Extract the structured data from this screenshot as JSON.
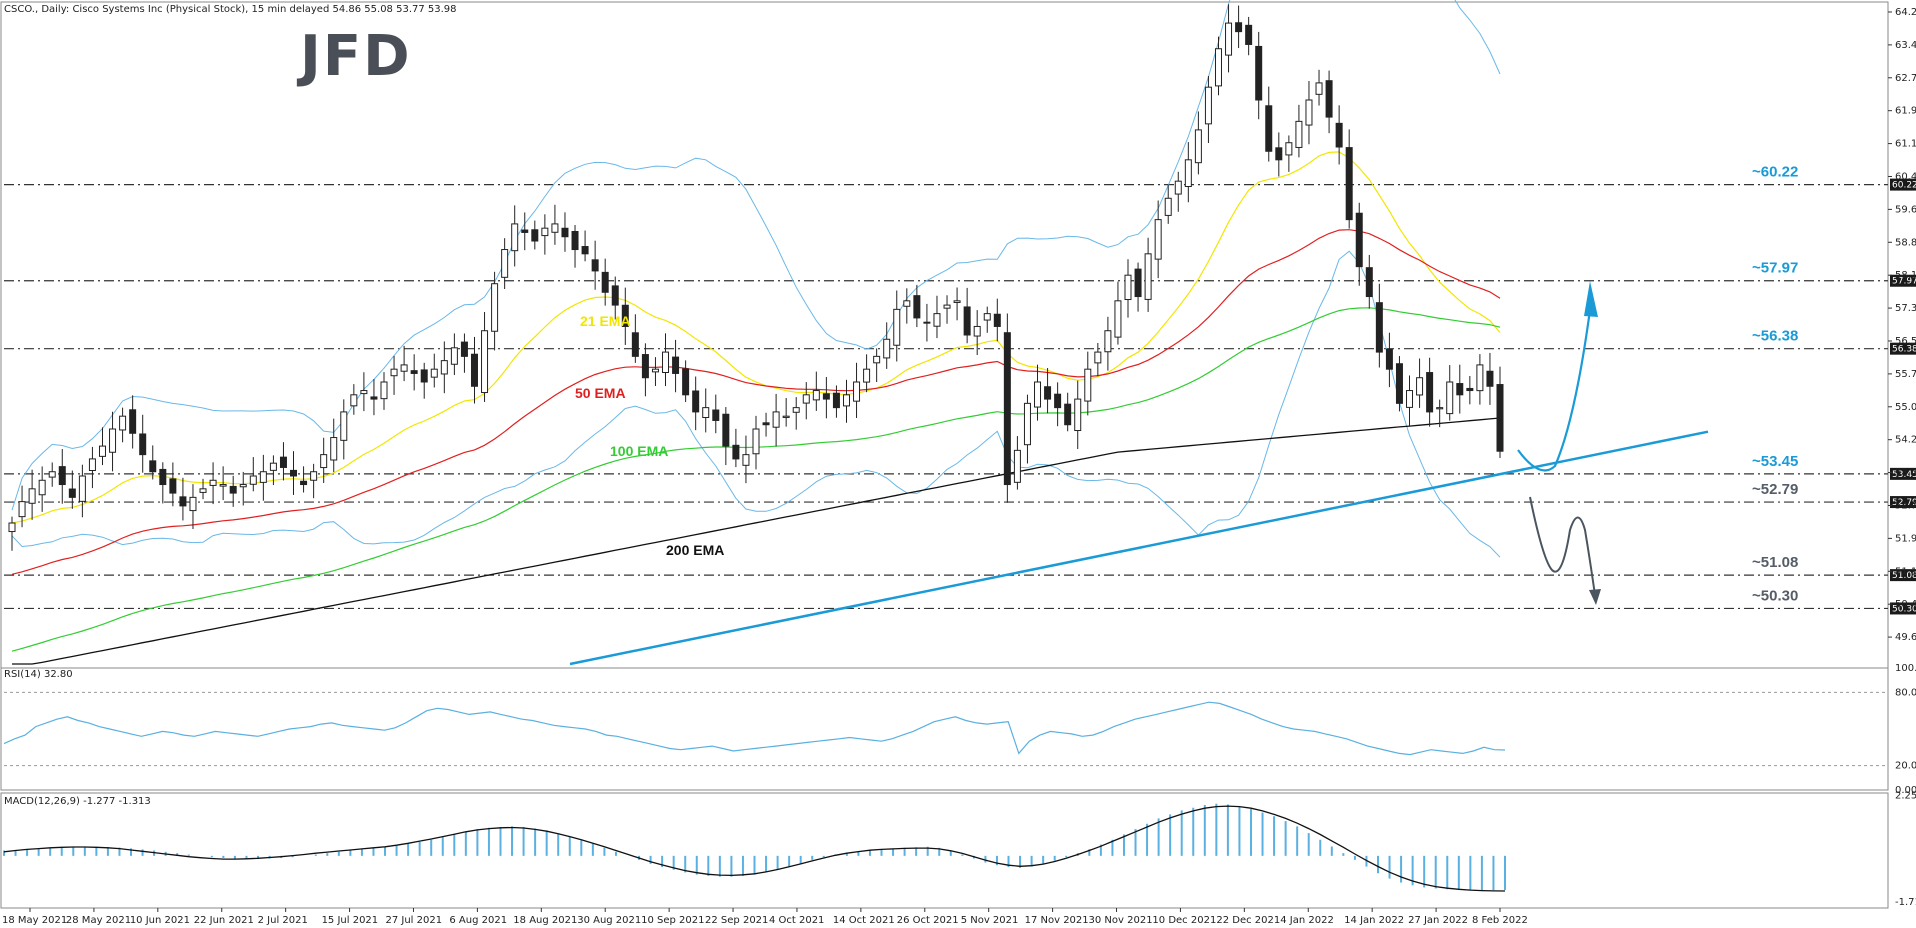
{
  "header": {
    "symbol_line": "CSCO., Daily:  Cisco Systems Inc (Physical Stock), 15 min delayed  54.86 55.08 53.77 53.98"
  },
  "logo": {
    "text": "JFD"
  },
  "colors": {
    "ema21": "#f2e600",
    "ema50": "#e02020",
    "ema100": "#33cc33",
    "ema200": "#111111",
    "bollinger": "#6ab8e8",
    "trendline": "#1a9ad6",
    "up_arrow": "#1a9ad6",
    "down_arrow": "#4a5560",
    "level_label_blue": "#1a9ad6",
    "level_label_gray": "#555d66",
    "rsi_line": "#5ab0e0",
    "macd_hist": "#5ab0e0",
    "macd_signal": "#111111"
  },
  "chart_data": [
    {
      "type": "candlestick",
      "title": "CSCO., Daily:  Cisco Systems Inc (Physical Stock), 15 min delayed  54.86 55.08 53.77 53.98",
      "xlabel": "",
      "ylabel": "",
      "ylim": [
        49.0,
        64.4
      ],
      "y_ticks": [
        "64.26",
        "63.49",
        "62.72",
        "61.95",
        "61.18",
        "60.41",
        "59.64",
        "58.87",
        "58.10",
        "57.33",
        "56.56",
        "55.79",
        "55.02",
        "54.25",
        "53.48",
        "52.71",
        "51.94",
        "51.17",
        "50.40",
        "49.63"
      ],
      "x_ticks": [
        "18 May 2021",
        "28 May 2021",
        "10 Jun 2021",
        "22 Jun 2021",
        "2 Jul 2021",
        "15 Jul 2021",
        "27 Jul 2021",
        "6 Aug 2021",
        "18 Aug 2021",
        "30 Aug 2021",
        "10 Sep 2021",
        "22 Sep 2021",
        "4 Oct 2021",
        "14 Oct 2021",
        "26 Oct 2021",
        "5 Nov 2021",
        "17 Nov 2021",
        "30 Nov 2021",
        "10 Dec 2021",
        "22 Dec 2021",
        "4 Jan 2022",
        "14 Jan 2022",
        "27 Jan 2022",
        "8 Feb 2022"
      ],
      "close_series": [
        52.3,
        52.8,
        53.1,
        53.3,
        53.5,
        53.2,
        52.9,
        53.4,
        53.8,
        54.1,
        54.5,
        54.8,
        54.4,
        53.9,
        53.5,
        53.2,
        53.0,
        52.7,
        52.9,
        53.1,
        53.3,
        53.2,
        53.0,
        53.2,
        53.4,
        53.5,
        53.7,
        53.6,
        53.4,
        53.2,
        53.5,
        53.9,
        54.3,
        54.9,
        55.3,
        55.4,
        55.2,
        55.6,
        55.9,
        56.0,
        55.8,
        55.6,
        55.9,
        56.1,
        56.4,
        56.2,
        55.5,
        56.8,
        57.9,
        58.7,
        59.3,
        59.1,
        58.9,
        59.2,
        59.3,
        59.0,
        58.7,
        58.6,
        58.2,
        57.7,
        57.4,
        56.9,
        56.2,
        55.7,
        55.9,
        56.3,
        55.8,
        55.3,
        54.9,
        55.0,
        54.7,
        54.1,
        53.8,
        53.9,
        54.5,
        54.6,
        54.9,
        54.8,
        55.0,
        55.3,
        55.4,
        55.2,
        55.0,
        55.3,
        55.6,
        55.9,
        56.2,
        56.6,
        57.3,
        57.5,
        57.1,
        57.0,
        57.2,
        57.4,
        57.5,
        56.7,
        56.9,
        57.2,
        56.9,
        53.2,
        54.0,
        55.1,
        55.6,
        55.2,
        55.0,
        54.6,
        55.2,
        55.9,
        56.3,
        56.8,
        57.5,
        58.1,
        57.6,
        58.6,
        59.4,
        59.9,
        60.3,
        60.8,
        61.5,
        62.5,
        63.4,
        64.0,
        63.8,
        63.5,
        62.2,
        61.0,
        60.8,
        61.2,
        61.7,
        62.2,
        62.6,
        61.8,
        61.1,
        59.4,
        58.3,
        57.6,
        56.3,
        55.9,
        55.1,
        55.4,
        55.7,
        54.9,
        55.0,
        55.6,
        55.3,
        55.4,
        56.0,
        55.5,
        53.98
      ],
      "levels": [
        {
          "label": "~60.22",
          "value": 60.22,
          "color": "blue"
        },
        {
          "label": "~57.97",
          "value": 57.97,
          "color": "blue"
        },
        {
          "label": "~56.38",
          "value": 56.38,
          "color": "blue"
        },
        {
          "label": "~53.45",
          "value": 53.45,
          "color": "blue"
        },
        {
          "label": "~52.79",
          "value": 52.79,
          "color": "gray"
        },
        {
          "label": "~51.08",
          "value": 51.08,
          "color": "gray"
        },
        {
          "label": "~50.30",
          "value": 50.3,
          "color": "gray"
        }
      ],
      "level_price_tags": [
        "60.22",
        "57.97",
        "56.38",
        "53.45",
        "52.79",
        "51.08",
        "50.30"
      ],
      "ema_labels": [
        "21 EMA",
        "50 EMA",
        "100 EMA",
        "200 EMA"
      ]
    },
    {
      "type": "line",
      "title": "RSI(14) 32.80",
      "ylim": [
        0,
        100
      ],
      "y_ticks": [
        "100.00",
        "80.00",
        "20.00",
        "0.00"
      ],
      "values": [
        38,
        42,
        45,
        52,
        55,
        58,
        60,
        57,
        55,
        52,
        50,
        48,
        46,
        44,
        46,
        48,
        47,
        45,
        44,
        46,
        48,
        47,
        46,
        45,
        44,
        46,
        48,
        50,
        51,
        52,
        54,
        55,
        53,
        52,
        51,
        50,
        49,
        51,
        55,
        60,
        65,
        67,
        66,
        64,
        62,
        63,
        64,
        62,
        60,
        58,
        57,
        55,
        53,
        52,
        51,
        50,
        48,
        45,
        44,
        42,
        40,
        38,
        36,
        34,
        33,
        34,
        35,
        36,
        34,
        32,
        33,
        34,
        35,
        36,
        37,
        38,
        39,
        40,
        41,
        42,
        43,
        42,
        41,
        40,
        42,
        45,
        48,
        52,
        56,
        58,
        60,
        57,
        55,
        54,
        55,
        56,
        30,
        40,
        45,
        48,
        47,
        46,
        44,
        45,
        48,
        52,
        55,
        58,
        60,
        62,
        64,
        66,
        68,
        70,
        72,
        71,
        68,
        65,
        62,
        58,
        55,
        52,
        50,
        49,
        48,
        46,
        44,
        42,
        39,
        36,
        34,
        32,
        30,
        29,
        31,
        33,
        32,
        31,
        30,
        32,
        35,
        33,
        32.8
      ]
    },
    {
      "type": "bar",
      "title": "MACD(12,26,9) -1.277 -1.313",
      "ylim": [
        -1.95,
        2.35
      ],
      "y_ticks": [
        "2.252",
        "-1.717"
      ],
      "histogram": [
        0.2,
        0.22,
        0.25,
        0.27,
        0.29,
        0.31,
        0.32,
        0.33,
        0.34,
        0.33,
        0.31,
        0.28,
        0.24,
        0.2,
        0.15,
        0.1,
        0.05,
        0.0,
        -0.05,
        -0.08,
        -0.1,
        -0.12,
        -0.12,
        -0.1,
        -0.08,
        -0.05,
        0.0,
        0.05,
        0.1,
        0.15,
        0.2,
        0.24,
        0.28,
        0.32,
        0.38,
        0.45,
        0.52,
        0.6,
        0.7,
        0.8,
        0.9,
        1.0,
        1.05,
        1.08,
        1.1,
        1.08,
        1.02,
        0.95,
        0.85,
        0.72,
        0.58,
        0.45,
        0.3,
        0.15,
        0.0,
        -0.15,
        -0.3,
        -0.42,
        -0.52,
        -0.62,
        -0.7,
        -0.75,
        -0.78,
        -0.78,
        -0.75,
        -0.7,
        -0.62,
        -0.52,
        -0.4,
        -0.28,
        -0.15,
        -0.05,
        0.05,
        0.12,
        0.18,
        0.22,
        0.25,
        0.28,
        0.3,
        0.32,
        0.34,
        0.3,
        0.2,
        0.05,
        -0.1,
        -0.25,
        -0.35,
        -0.42,
        -0.45,
        -0.4,
        -0.3,
        -0.18,
        -0.05,
        0.1,
        0.25,
        0.42,
        0.6,
        0.8,
        1.0,
        1.2,
        1.4,
        1.55,
        1.7,
        1.8,
        1.9,
        1.95,
        1.92,
        1.85,
        1.75,
        1.62,
        1.48,
        1.3,
        1.1,
        0.85,
        0.6,
        0.35,
        0.1,
        -0.15,
        -0.4,
        -0.65,
        -0.85,
        -1.0,
        -1.1,
        -1.18,
        -1.22,
        -1.25,
        -1.27,
        -1.28,
        -1.28,
        -1.28,
        -1.277
      ],
      "signal": [
        0.15,
        0.2,
        0.24,
        0.27,
        0.3,
        0.32,
        0.33,
        0.33,
        0.32,
        0.3,
        0.27,
        0.22,
        0.17,
        0.12,
        0.07,
        0.02,
        -0.03,
        -0.07,
        -0.1,
        -0.12,
        -0.12,
        -0.11,
        -0.09,
        -0.06,
        -0.03,
        0.01,
        0.05,
        0.1,
        0.14,
        0.18,
        0.22,
        0.26,
        0.3,
        0.34,
        0.4,
        0.47,
        0.55,
        0.63,
        0.72,
        0.81,
        0.9,
        0.97,
        1.02,
        1.05,
        1.06,
        1.04,
        0.99,
        0.92,
        0.83,
        0.72,
        0.6,
        0.47,
        0.34,
        0.2,
        0.06,
        -0.08,
        -0.22,
        -0.34,
        -0.45,
        -0.55,
        -0.63,
        -0.69,
        -0.72,
        -0.73,
        -0.71,
        -0.67,
        -0.6,
        -0.51,
        -0.41,
        -0.3,
        -0.19,
        -0.08,
        0.02,
        0.1,
        0.16,
        0.21,
        0.24,
        0.26,
        0.28,
        0.29,
        0.29,
        0.26,
        0.19,
        0.09,
        -0.03,
        -0.16,
        -0.27,
        -0.35,
        -0.39,
        -0.37,
        -0.31,
        -0.21,
        -0.09,
        0.05,
        0.2,
        0.36,
        0.54,
        0.72,
        0.9,
        1.08,
        1.26,
        1.42,
        1.56,
        1.68,
        1.78,
        1.84,
        1.86,
        1.84,
        1.78,
        1.68,
        1.55,
        1.4,
        1.22,
        1.02,
        0.8,
        0.56,
        0.32,
        0.07,
        -0.17,
        -0.4,
        -0.61,
        -0.79,
        -0.94,
        -1.06,
        -1.15,
        -1.21,
        -1.25,
        -1.28,
        -1.3,
        -1.31,
        -1.313
      ]
    }
  ]
}
